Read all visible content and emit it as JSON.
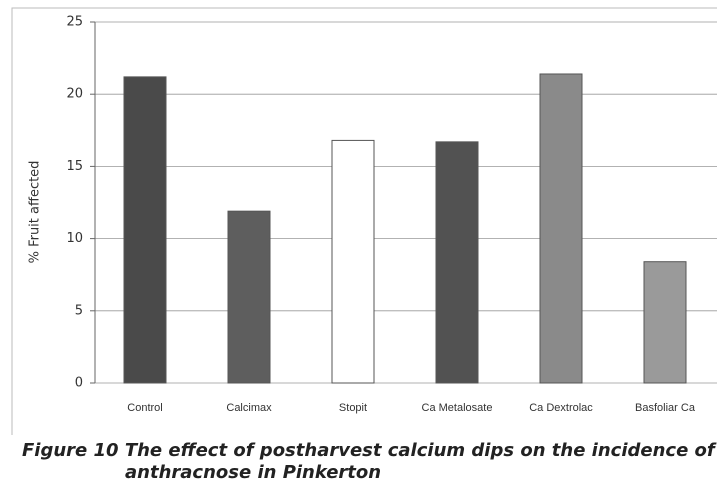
{
  "chart_data": {
    "type": "bar",
    "title": "Figure 10 The effect of postharvest calcium dips on the incidence of anthracnose in Pinkerton",
    "y_label": "% Fruit affected",
    "categories": [
      "Control",
      "Calcimax",
      "Stopit",
      "Ca Metalosate",
      "Ca Dextrolac",
      "Basfoliar Ca"
    ],
    "values": [
      21.2,
      11.9,
      16.8,
      16.7,
      21.4,
      8.4
    ],
    "colors": [
      "#4a4a4a",
      "#5e5e5e",
      "#ffffff",
      "#525252",
      "#8a8a8a",
      "#9a9a9a"
    ],
    "ylim": [
      0,
      25
    ],
    "yticks": [
      0,
      5,
      10,
      15,
      20,
      25
    ],
    "grid": true
  }
}
